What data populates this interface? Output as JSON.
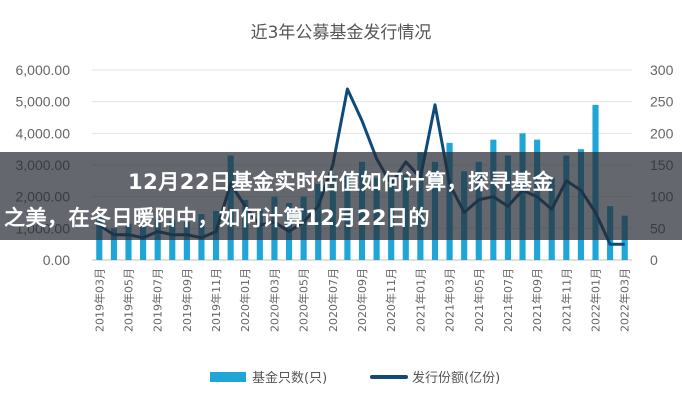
{
  "chart_data": {
    "type": "bar+line",
    "title": "近3年公募基金发行情况",
    "categories": [
      "2019年03月",
      "2019年04月",
      "2019年05月",
      "2019年06月",
      "2019年07月",
      "2019年08月",
      "2019年09月",
      "2019年10月",
      "2019年11月",
      "2019年12月",
      "2020年01月",
      "2020年02月",
      "2020年03月",
      "2020年04月",
      "2020年05月",
      "2020年06月",
      "2020年07月",
      "2020年08月",
      "2020年09月",
      "2020年10月",
      "2020年11月",
      "2020年12月",
      "2021年01月",
      "2021年02月",
      "2021年03月",
      "2021年04月",
      "2021年05月",
      "2021年06月",
      "2021年07月",
      "2021年08月",
      "2021年09月",
      "2021年10月",
      "2021年11月",
      "2021年12月",
      "2022年01月",
      "2022年02月",
      "2022年03月"
    ],
    "x_tick_labels": [
      "2019年03月",
      "2019年05月",
      "2019年07月",
      "2019年09月",
      "2019年11月",
      "2020年01月",
      "2020年03月",
      "2020年05月",
      "2020年07月",
      "2020年09月",
      "2020年11月",
      "2021年01月",
      "2021年03月",
      "2021年05月",
      "2021年07月",
      "2021年09月",
      "2021年11月",
      "2022年01月",
      "2022年03月"
    ],
    "left_axis": {
      "ylim": [
        0,
        6000
      ],
      "tick_labels": [
        "0.00",
        "1,000.00",
        "2,000.00",
        "3,000.00",
        "4,000.00",
        "5,000.00",
        "6,000.00"
      ]
    },
    "right_axis": {
      "ylim": [
        0,
        300
      ],
      "tick_labels": [
        "0",
        "50",
        "100",
        "150",
        "200",
        "250",
        "300"
      ]
    },
    "series": [
      {
        "name": "基金只数(只)",
        "type": "bar",
        "axis": "left",
        "color": "#1fa6d6",
        "values": [
          1400,
          1000,
          1150,
          1050,
          1300,
          1250,
          1200,
          1450,
          1550,
          3300,
          1900,
          1600,
          2000,
          1800,
          2000,
          2400,
          2700,
          2700,
          3100,
          2600,
          2400,
          2700,
          3400,
          3100,
          3700,
          2800,
          3100,
          3800,
          3300,
          4000,
          3800,
          2600,
          3300,
          3500,
          4900,
          1700,
          1400
        ]
      },
      {
        "name": "发行份额(亿份)",
        "type": "line",
        "axis": "right",
        "color": "#0e4a7a",
        "values": [
          55,
          40,
          40,
          35,
          45,
          40,
          40,
          35,
          45,
          120,
          85,
          55,
          60,
          45,
          60,
          85,
          150,
          270,
          220,
          160,
          120,
          155,
          130,
          245,
          120,
          75,
          95,
          100,
          85,
          110,
          100,
          80,
          125,
          110,
          75,
          25,
          25
        ]
      }
    ],
    "legend_position": "bottom",
    "grid": "horizontal"
  },
  "banner": {
    "line1": "12月22日基金实时估值如何计算，探寻基金",
    "line2": "之美，在冬日暖阳中，如何计算12月22日的"
  }
}
